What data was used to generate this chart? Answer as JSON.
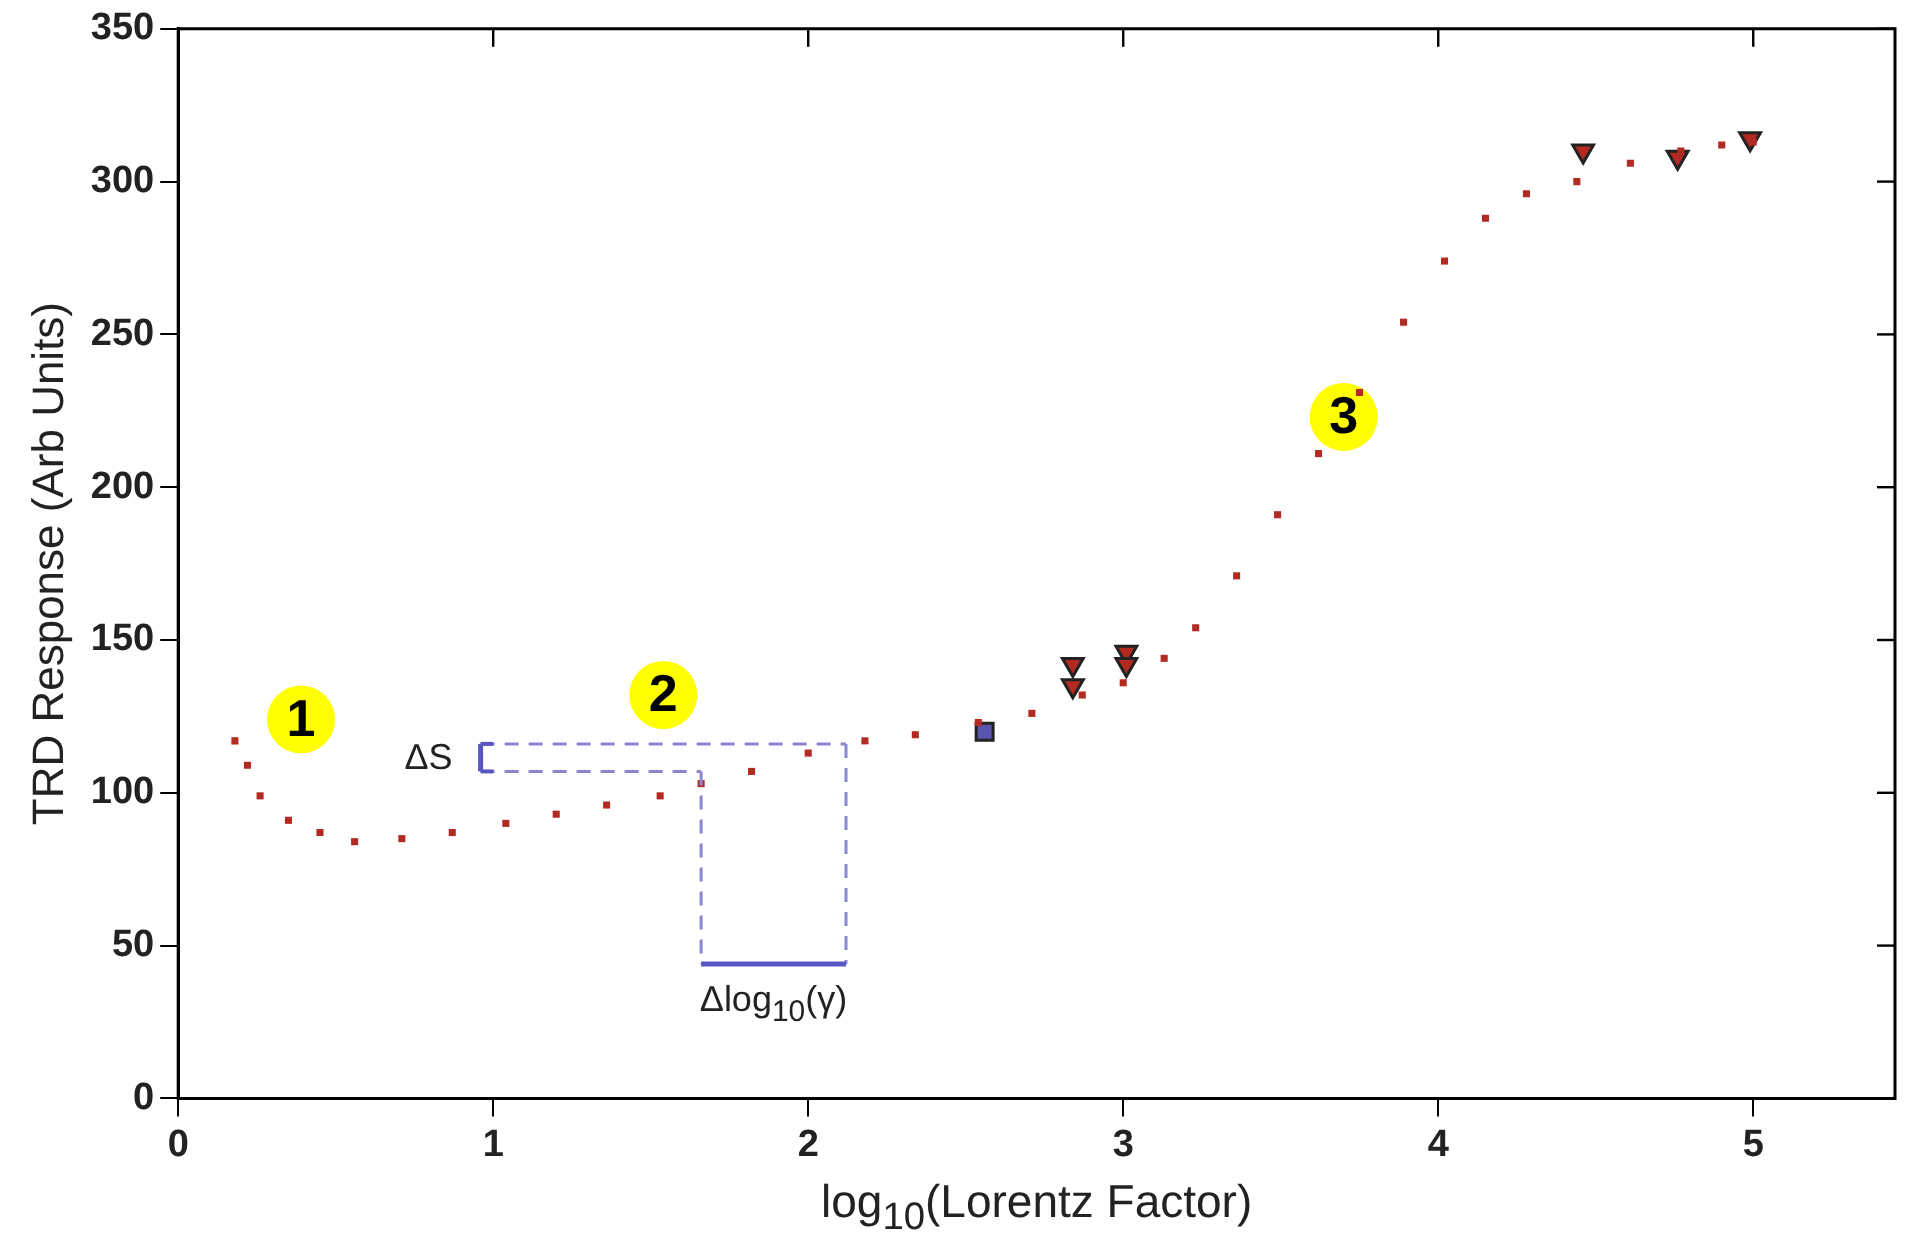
{
  "chart_data": {
    "type": "scatter",
    "xlabel": "log$_{10}$(Lorentz Factor)",
    "ylabel": "TRD Response (Arb Units)",
    "xlim": [
      0,
      5.45
    ],
    "ylim": [
      0,
      350
    ],
    "xticks": [
      0,
      1,
      2,
      3,
      4,
      5
    ],
    "yticks": [
      0,
      50,
      100,
      150,
      200,
      250,
      300,
      350
    ],
    "grid": false,
    "legend": false,
    "series": [
      {
        "color": "#b22a22",
        "marker": "square",
        "x": [
          0.18,
          0.22,
          0.26,
          0.35,
          0.45,
          0.56,
          0.71,
          0.87,
          1.04,
          1.2,
          1.36,
          1.53,
          1.66,
          1.82,
          2.0,
          2.18,
          2.34,
          2.54,
          2.71,
          2.87,
          3.0,
          3.13,
          3.23,
          3.36,
          3.49,
          3.62,
          3.75,
          3.89,
          4.02,
          4.15,
          4.28,
          4.44,
          4.61,
          4.77,
          4.9,
          5.0
        ],
        "values": [
          117,
          109,
          99,
          91,
          87,
          84,
          85,
          87,
          90,
          93,
          96,
          99,
          103,
          107,
          113,
          117,
          119,
          123,
          126,
          132,
          136,
          144,
          154,
          171,
          191,
          211,
          231,
          254,
          274,
          288,
          296,
          300,
          306,
          310,
          312,
          313
        ]
      },
      {
        "color": "#b22a22",
        "marker": "triangle",
        "x": [
          2.84,
          2.84,
          3.01,
          3.01,
          4.46,
          4.76,
          4.99
        ],
        "values": [
          142,
          135,
          146,
          142,
          310,
          308,
          314
        ]
      },
      {
        "color": "#5a55b0",
        "marker": "square",
        "x": [
          2.56
        ],
        "values": [
          120
        ]
      }
    ],
    "annotations": [
      {
        "text": "1",
        "x": 0.39,
        "y": 124
      },
      {
        "text": "2",
        "x": 1.54,
        "y": 132
      },
      {
        "text": "3",
        "x": 3.7,
        "y": 223
      },
      "ΔS",
      "Δlog$_{10}$(γ)"
    ]
  }
}
